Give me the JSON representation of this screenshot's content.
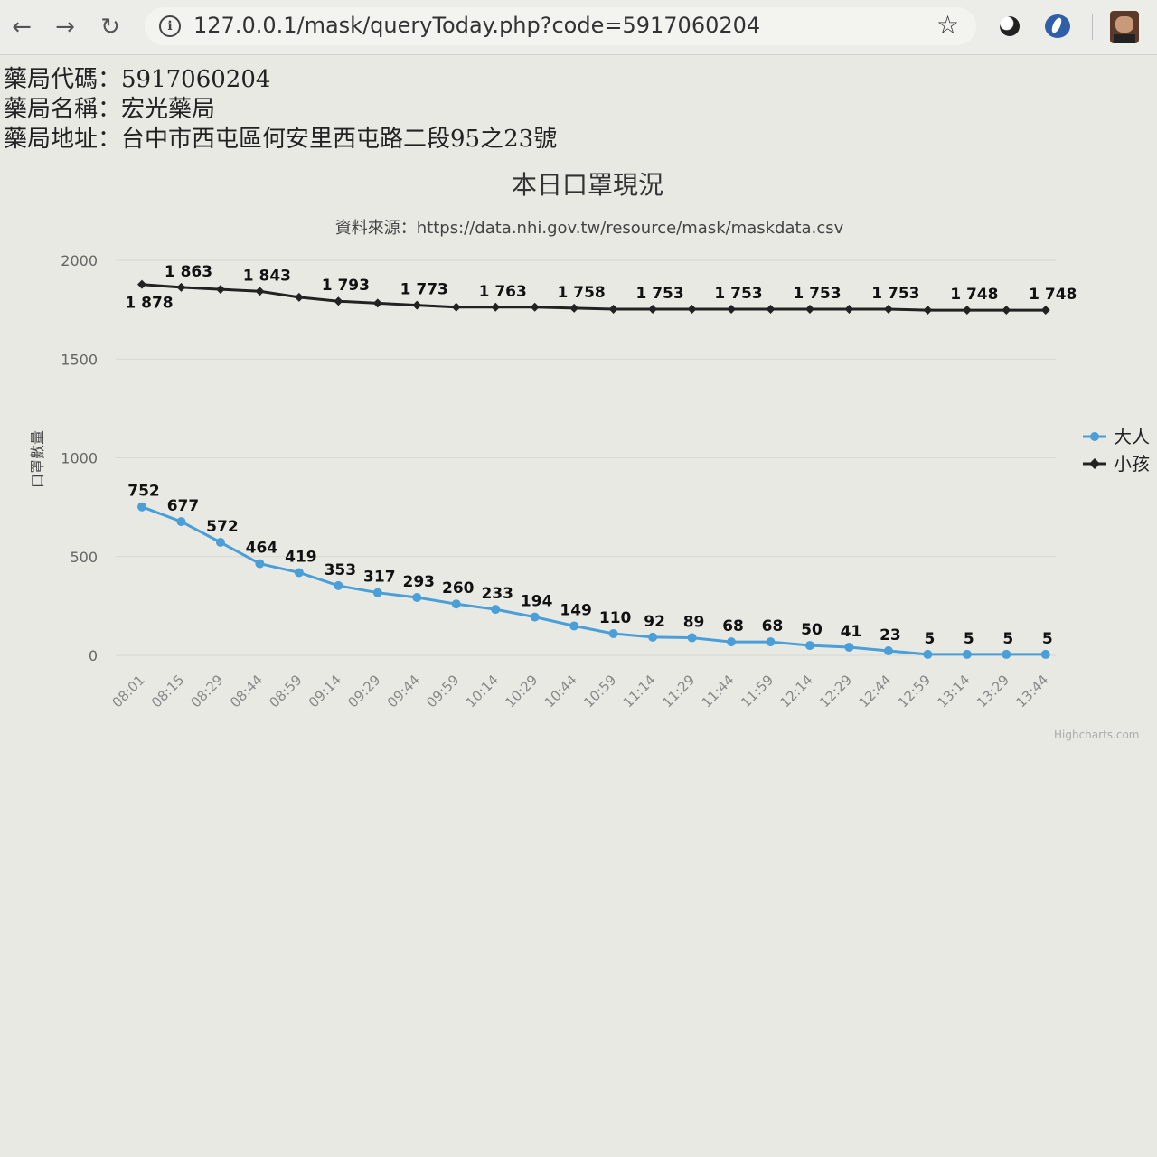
{
  "browser": {
    "url": "127.0.0.1/mask/queryToday.php?code=5917060204"
  },
  "pharmacy": {
    "code_line": "藥局代碼：5917060204",
    "name_line": "藥局名稱：宏光藥局",
    "address_line": "藥局地址：台中市西屯區何安里西屯路二段95之23號"
  },
  "credits": "Highcharts.com",
  "chart_data": {
    "type": "line",
    "title": "本日口罩現況",
    "subtitle": "資料來源：https://data.nhi.gov.tw/resource/mask/maskdata.csv",
    "ylabel": "口罩數量",
    "xlabel": "",
    "ylim": [
      0,
      2000
    ],
    "yticks": [
      0,
      500,
      1000,
      1500,
      2000
    ],
    "grid": true,
    "legend_position": "right",
    "categories": [
      "08:01",
      "08:15",
      "08:29",
      "08:44",
      "08:59",
      "09:14",
      "09:29",
      "09:44",
      "09:59",
      "10:14",
      "10:29",
      "10:44",
      "10:59",
      "11:14",
      "11:29",
      "11:44",
      "11:59",
      "12:14",
      "12:29",
      "12:44",
      "12:59",
      "13:14",
      "13:29",
      "13:44"
    ],
    "series": [
      {
        "name": "大人",
        "color": "#4a9fd8",
        "values": [
          752,
          677,
          572,
          464,
          419,
          353,
          317,
          293,
          260,
          233,
          194,
          149,
          110,
          92,
          89,
          68,
          68,
          50,
          41,
          23,
          5,
          5,
          5,
          5
        ],
        "labels": [
          "752",
          "677",
          "572",
          "464",
          "419",
          "353",
          "317",
          "293",
          "260",
          "233",
          "194",
          "149",
          "110",
          "92",
          "89",
          "68",
          "68",
          "50",
          "41",
          "23",
          "5",
          "5",
          "5",
          "5"
        ]
      },
      {
        "name": "小孩",
        "color": "#222222",
        "values": [
          1878,
          1863,
          1853,
          1843,
          1813,
          1793,
          1783,
          1773,
          1763,
          1763,
          1763,
          1758,
          1753,
          1753,
          1753,
          1753,
          1753,
          1753,
          1753,
          1753,
          1748,
          1748,
          1748,
          1748
        ],
        "labels": [
          "1 878",
          "1 863",
          "",
          "1 843",
          "",
          "1 793",
          "",
          "1 773",
          "",
          "1 763",
          "",
          "1 758",
          "",
          "1 753",
          "",
          "1 753",
          "",
          "1 753",
          "",
          "1 753",
          "",
          "1 748",
          "",
          "1 748"
        ]
      }
    ]
  }
}
